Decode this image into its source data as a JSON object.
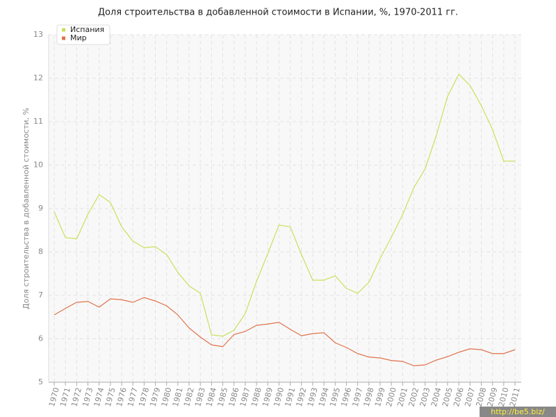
{
  "chart_data": {
    "type": "line",
    "title": "Доля строительства в добавленной стоимости в Испании, %, 1970-2011 гг.",
    "y_label": "Доля строительства в добавленной стоимости, %",
    "categories": [
      "1970",
      "1971",
      "1972",
      "1973",
      "1974",
      "1975",
      "1976",
      "1977",
      "1978",
      "1979",
      "1980",
      "1981",
      "1982",
      "1983",
      "1984",
      "1985",
      "1986",
      "1987",
      "1988",
      "1989",
      "1990",
      "1991",
      "1992",
      "1993",
      "1994",
      "1995",
      "1996",
      "1997",
      "1998",
      "1999",
      "2000",
      "2001",
      "2002",
      "2003",
      "2004",
      "2005",
      "2006",
      "2007",
      "2008",
      "2009",
      "2010",
      "2011"
    ],
    "series": [
      {
        "name": "Испания",
        "color": "#c9e05b",
        "values": [
          8.92,
          8.33,
          8.3,
          8.87,
          9.32,
          9.14,
          8.58,
          8.25,
          8.1,
          8.12,
          7.94,
          7.53,
          7.22,
          7.05,
          6.09,
          6.06,
          6.2,
          6.58,
          7.32,
          7.96,
          8.62,
          8.58,
          7.94,
          7.35,
          7.35,
          7.45,
          7.16,
          7.05,
          7.3,
          7.85,
          8.34,
          8.86,
          9.48,
          9.91,
          10.68,
          11.58,
          12.09,
          11.83,
          11.37,
          10.82,
          10.09,
          10.09
        ]
      },
      {
        "name": "Мир",
        "color": "#e0714a",
        "values": [
          6.55,
          6.7,
          6.84,
          6.86,
          6.73,
          6.92,
          6.9,
          6.84,
          6.95,
          6.87,
          6.76,
          6.55,
          6.25,
          6.04,
          5.86,
          5.82,
          6.1,
          6.17,
          6.31,
          6.34,
          6.38,
          6.22,
          6.07,
          6.12,
          6.14,
          5.91,
          5.8,
          5.66,
          5.58,
          5.56,
          5.5,
          5.48,
          5.38,
          5.4,
          5.51,
          5.59,
          5.69,
          5.77,
          5.75,
          5.66,
          5.66,
          5.75
        ]
      }
    ],
    "ylim": [
      5,
      13
    ],
    "yticks": [
      5,
      6,
      7,
      8,
      9,
      10,
      11,
      12,
      13
    ],
    "grid": true,
    "legend": "top-left",
    "watermark": "http://be5.biz/"
  }
}
